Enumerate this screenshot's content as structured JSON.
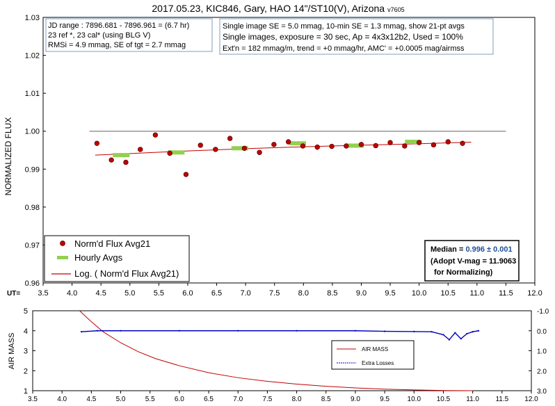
{
  "title": "2017.05.23, KIC846, Gary, HAO 14\"/ST10(V), Arizona",
  "title_suffix": "v7605",
  "info_left": [
    "JD range : 7896.681 - 7896.961 = (6.7 hr)",
    "23 ref *, 23 cal* (using BLG V)",
    "RMSi = 4.9 mmag, SE of tgt = 2.7 mmag"
  ],
  "info_right": [
    "Single image SE = 5.0 mmag, 10-min SE = 1.3 mmag, show 21-pt avgs",
    "Single images, exposure = 30 sec, Ap = 4x3x12b2, Used = 100%",
    "Ext'n = 182 mmag/m, trend = +0 mmag/hr, AMC' = +0.0005 mag/airmss"
  ],
  "median_box": {
    "line1_prefix": "Median = ",
    "line1_value": "0.996 ± 0.001",
    "line2": "(Adopt V-mag = 11.9063",
    "line3": "for Normalizing)"
  },
  "colors": {
    "points": "#c00000",
    "hourly": "#92d050",
    "trend": "#c00000",
    "airmass": "#c00000",
    "losses": "#0000c0",
    "median_value": "#1f4e99",
    "refline": "#808080"
  },
  "chart_data": [
    {
      "type": "scatter",
      "ylabel": "NORMALIZED FLUX",
      "x_axis_label": "UT=",
      "xlim": [
        3.5,
        12.0
      ],
      "ylim": [
        0.96,
        1.03
      ],
      "xticks": [
        "3.5",
        "4.0",
        "4.5",
        "5.0",
        "5.5",
        "6.0",
        "6.5",
        "7.0",
        "7.5",
        "8.0",
        "8.5",
        "9.0",
        "9.5",
        "10.0",
        "10.5",
        "11.0",
        "11.5",
        "12.0"
      ],
      "yticks": [
        "0.96",
        "0.97",
        "0.98",
        "0.99",
        "1.00",
        "1.01",
        "1.02",
        "1.03"
      ],
      "reference_line": 1.0,
      "legend": [
        "Norm'd Flux Avg21",
        "Hourly Avgs",
        "Log. ( Norm'd Flux Avg21)"
      ],
      "series": [
        {
          "name": "Norm'd Flux Avg21",
          "x": [
            4.43,
            4.68,
            4.93,
            5.18,
            5.44,
            5.69,
            5.97,
            6.22,
            6.48,
            6.73,
            6.98,
            7.24,
            7.49,
            7.74,
            7.99,
            8.24,
            8.49,
            8.74,
            9.0,
            9.25,
            9.5,
            9.75,
            10.0,
            10.25,
            10.5,
            10.75
          ],
          "y": [
            0.9968,
            0.9924,
            0.9918,
            0.9952,
            0.999,
            0.9942,
            0.9886,
            0.9963,
            0.9952,
            0.9981,
            0.9955,
            0.9944,
            0.9965,
            0.9972,
            0.9961,
            0.9958,
            0.996,
            0.9961,
            0.9965,
            0.9962,
            0.997,
            0.9961,
            0.997,
            0.9964,
            0.9972,
            0.9968
          ]
        },
        {
          "name": "Hourly Avgs",
          "x": [
            4.85,
            5.8,
            6.9,
            7.9,
            8.9,
            9.9
          ],
          "y": [
            0.9937,
            0.9944,
            0.9955,
            0.9968,
            0.9962,
            0.9972
          ]
        },
        {
          "name": "Log. ( Norm'd Flux Avg21)",
          "x": [
            4.4,
            5.0,
            6.0,
            7.0,
            8.0,
            9.0,
            10.0,
            10.9
          ],
          "y": [
            0.9937,
            0.9941,
            0.9948,
            0.9954,
            0.9959,
            0.9963,
            0.9967,
            0.9971
          ]
        }
      ]
    },
    {
      "type": "line",
      "ylabel": "AIR MASS",
      "xlim": [
        3.5,
        12.0
      ],
      "ylim": [
        1,
        5
      ],
      "y2lim": [
        -1.0,
        3.0
      ],
      "xticks": [
        "3.5",
        "4.0",
        "4.5",
        "5.0",
        "5.5",
        "6.0",
        "6.5",
        "7.0",
        "7.5",
        "8.0",
        "8.5",
        "9.0",
        "9.5",
        "10.0",
        "10.5",
        "11.0",
        "11.5",
        "12.0"
      ],
      "yticks": [
        "1",
        "2",
        "3",
        "4",
        "5"
      ],
      "y2ticks": [
        "-1.0",
        "0.0",
        "1.0",
        "2.0",
        "3.0"
      ],
      "legend": [
        "AIR MASS",
        "Extra Losses"
      ],
      "series": [
        {
          "name": "AIR MASS",
          "x": [
            4.3,
            4.5,
            4.7,
            5.0,
            5.3,
            5.6,
            6.0,
            6.5,
            7.0,
            7.5,
            8.0,
            8.5,
            9.0,
            9.5,
            10.0,
            10.5,
            11.0
          ],
          "y": [
            5.0,
            4.45,
            3.95,
            3.4,
            2.95,
            2.6,
            2.25,
            1.9,
            1.65,
            1.47,
            1.33,
            1.22,
            1.14,
            1.08,
            1.04,
            1.01,
            1.0
          ]
        },
        {
          "name": "Extra Losses",
          "x": [
            4.33,
            4.6,
            5.0,
            6.0,
            7.0,
            8.0,
            9.0,
            9.5,
            10.0,
            10.3,
            10.5,
            10.6,
            10.7,
            10.8,
            10.9,
            11.0,
            11.1
          ],
          "y": [
            0.05,
            0.0,
            0.0,
            0.0,
            0.0,
            0.0,
            0.0,
            0.03,
            0.04,
            0.05,
            0.2,
            0.45,
            0.1,
            0.4,
            0.15,
            0.05,
            0.0
          ]
        }
      ]
    }
  ]
}
